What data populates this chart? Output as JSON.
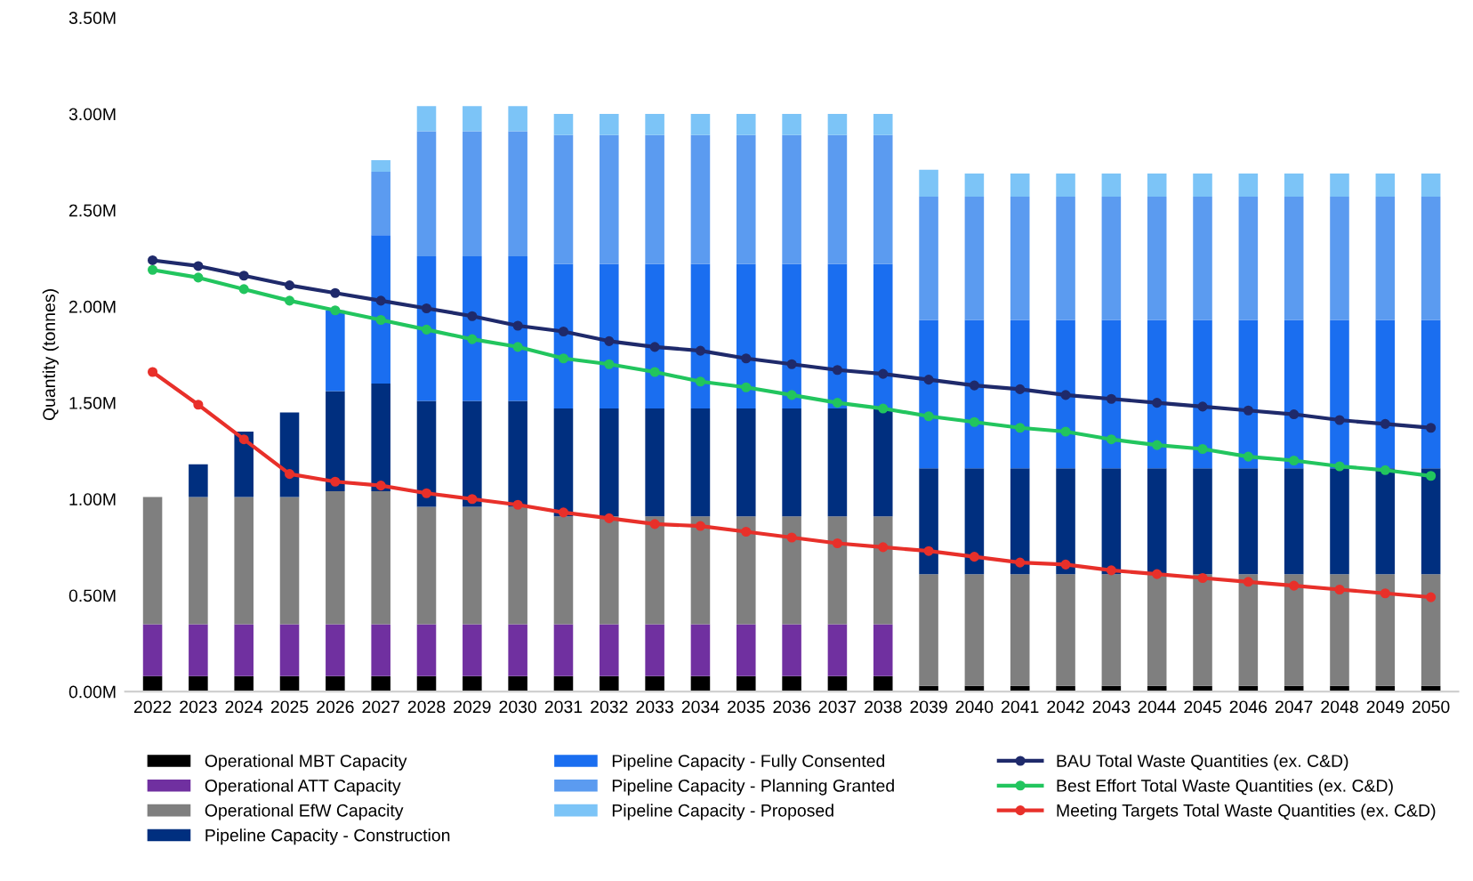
{
  "chart_data": {
    "type": "bar",
    "stacked": true,
    "ylabel": "Quantity (tonnes)",
    "categories": [
      "2022",
      "2023",
      "2024",
      "2025",
      "2026",
      "2027",
      "2028",
      "2029",
      "2030",
      "2031",
      "2032",
      "2033",
      "2034",
      "2035",
      "2036",
      "2037",
      "2038",
      "2039",
      "2040",
      "2041",
      "2042",
      "2043",
      "2044",
      "2045",
      "2046",
      "2047",
      "2048",
      "2049",
      "2050"
    ],
    "series": [
      {
        "name": "Operational MBT Capacity",
        "color": "#000000",
        "values": [
          0.08,
          0.08,
          0.08,
          0.08,
          0.08,
          0.08,
          0.08,
          0.08,
          0.08,
          0.08,
          0.08,
          0.08,
          0.08,
          0.08,
          0.08,
          0.08,
          0.08,
          0.03,
          0.03,
          0.03,
          0.03,
          0.03,
          0.03,
          0.03,
          0.03,
          0.03,
          0.03,
          0.03,
          0.03
        ]
      },
      {
        "name": "Operational ATT Capacity",
        "color": "#7030a0",
        "values": [
          0.27,
          0.27,
          0.27,
          0.27,
          0.27,
          0.27,
          0.27,
          0.27,
          0.27,
          0.27,
          0.27,
          0.27,
          0.27,
          0.27,
          0.27,
          0.27,
          0.27,
          0,
          0,
          0,
          0,
          0,
          0,
          0,
          0,
          0,
          0,
          0,
          0
        ]
      },
      {
        "name": "Operational EfW Capacity",
        "color": "#7f7f7f",
        "values": [
          0.66,
          0.66,
          0.66,
          0.66,
          0.69,
          0.69,
          0.61,
          0.61,
          0.61,
          0.56,
          0.56,
          0.56,
          0.56,
          0.56,
          0.56,
          0.56,
          0.56,
          0.58,
          0.58,
          0.58,
          0.58,
          0.58,
          0.58,
          0.58,
          0.58,
          0.58,
          0.58,
          0.58,
          0.58
        ]
      },
      {
        "name": "Pipeline Capacity - Construction",
        "color": "#002f7f",
        "values": [
          0,
          0.17,
          0.34,
          0.44,
          0.52,
          0.56,
          0.55,
          0.55,
          0.55,
          0.56,
          0.56,
          0.56,
          0.56,
          0.56,
          0.56,
          0.56,
          0.56,
          0.55,
          0.55,
          0.55,
          0.55,
          0.55,
          0.55,
          0.55,
          0.55,
          0.55,
          0.55,
          0.55,
          0.55
        ]
      },
      {
        "name": "Pipeline Capacity - Fully Consented",
        "color": "#1a6ef0",
        "values": [
          0,
          0,
          0,
          0,
          0.42,
          0.77,
          0.75,
          0.75,
          0.75,
          0.75,
          0.75,
          0.75,
          0.75,
          0.75,
          0.75,
          0.75,
          0.75,
          0.77,
          0.77,
          0.77,
          0.77,
          0.77,
          0.77,
          0.77,
          0.77,
          0.77,
          0.77,
          0.77,
          0.77
        ]
      },
      {
        "name": "Pipeline Capacity - Planning Granted",
        "color": "#5b9bf0",
        "values": [
          0,
          0,
          0,
          0,
          0,
          0.33,
          0.65,
          0.65,
          0.65,
          0.67,
          0.67,
          0.67,
          0.67,
          0.67,
          0.67,
          0.67,
          0.67,
          0.64,
          0.64,
          0.64,
          0.64,
          0.64,
          0.64,
          0.64,
          0.64,
          0.64,
          0.64,
          0.64,
          0.64
        ]
      },
      {
        "name": "Pipeline Capacity - Proposed",
        "color": "#7cc4f7",
        "values": [
          0,
          0,
          0,
          0,
          0,
          0.06,
          0.13,
          0.13,
          0.13,
          0.11,
          0.11,
          0.11,
          0.11,
          0.11,
          0.11,
          0.11,
          0.11,
          0.14,
          0.12,
          0.12,
          0.12,
          0.12,
          0.12,
          0.12,
          0.12,
          0.12,
          0.12,
          0.12,
          0.12
        ]
      },
      {
        "name": "BAU Total Waste Quantities (ex. C&D)",
        "type": "line",
        "color": "#1f2a6b",
        "values": [
          2.24,
          2.21,
          2.16,
          2.11,
          2.07,
          2.03,
          1.99,
          1.95,
          1.9,
          1.87,
          1.82,
          1.79,
          1.77,
          1.73,
          1.7,
          1.67,
          1.65,
          1.62,
          1.59,
          1.57,
          1.54,
          1.52,
          1.5,
          1.48,
          1.46,
          1.44,
          1.41,
          1.39,
          1.37
        ]
      },
      {
        "name": "Best Effort Total Waste Quantities (ex. C&D)",
        "type": "line",
        "color": "#22c55e",
        "values": [
          2.19,
          2.15,
          2.09,
          2.03,
          1.98,
          1.93,
          1.88,
          1.83,
          1.79,
          1.73,
          1.7,
          1.66,
          1.61,
          1.58,
          1.54,
          1.5,
          1.47,
          1.43,
          1.4,
          1.37,
          1.35,
          1.31,
          1.28,
          1.26,
          1.22,
          1.2,
          1.17,
          1.15,
          1.12
        ]
      },
      {
        "name": "Meeting Targets Total Waste Quantities (ex. C&D)",
        "type": "line",
        "color": "#e8302a",
        "values": [
          1.66,
          1.49,
          1.31,
          1.13,
          1.09,
          1.07,
          1.03,
          1.0,
          0.97,
          0.93,
          0.9,
          0.87,
          0.86,
          0.83,
          0.8,
          0.77,
          0.75,
          0.73,
          0.7,
          0.67,
          0.66,
          0.63,
          0.61,
          0.59,
          0.57,
          0.55,
          0.53,
          0.51,
          0.49
        ]
      }
    ],
    "ylim": [
      0,
      3.5
    ],
    "yticks": [
      {
        "value": 0,
        "label": "0.00M"
      },
      {
        "value": 0.5,
        "label": "0.50M"
      },
      {
        "value": 1,
        "label": "1.00M"
      },
      {
        "value": 1.5,
        "label": "1.50M"
      },
      {
        "value": 2,
        "label": "2.00M"
      },
      {
        "value": 2.5,
        "label": "2.50M"
      },
      {
        "value": 3,
        "label": "3.00M"
      },
      {
        "value": 3.5,
        "label": "3.50M"
      }
    ],
    "grid": false,
    "legend": "bottom",
    "marker": "circle",
    "line_style": "solid"
  }
}
